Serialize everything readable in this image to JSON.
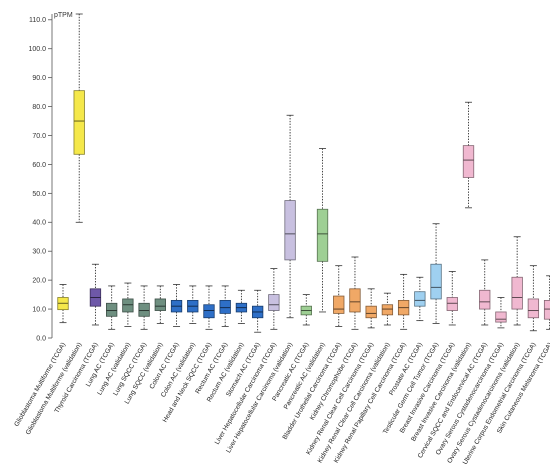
{
  "chart_data": {
    "type": "box",
    "ylabel": "pTPM",
    "ylim": [
      0,
      112
    ],
    "yticks": [
      0,
      10,
      20,
      30,
      40,
      50,
      60,
      70,
      80,
      90,
      100,
      110
    ],
    "ytick_labels": [
      "0.0",
      "10.0",
      "20.0",
      "30.0",
      "40.0",
      "50.0",
      "60.0",
      "70.0",
      "80.0",
      "90.0",
      "100.0",
      "110.0"
    ],
    "grid": false,
    "series": [
      {
        "category": "Glioblastoma Multiforme (TCGA)",
        "color": "#f5e84a",
        "min": 5.3,
        "q1": 9.8,
        "median": 12.0,
        "q3": 14.0,
        "max": 18.5
      },
      {
        "category": "Glioblastoma Multiforme (validation)",
        "color": "#f5e84a",
        "min": 40.0,
        "q1": 63.5,
        "median": 75.0,
        "q3": 85.5,
        "max": 112.0
      },
      {
        "category": "Thyroid Carcinoma (TCGA)",
        "color": "#6e58a8",
        "min": 4.5,
        "q1": 11.0,
        "median": 14.0,
        "q3": 17.0,
        "max": 25.5
      },
      {
        "category": "Lung AC (TCGA)",
        "color": "#6e8f80",
        "min": 3.0,
        "q1": 7.5,
        "median": 9.5,
        "q3": 12.0,
        "max": 18.0
      },
      {
        "category": "Lung AC (validation)",
        "color": "#6e8f80",
        "min": 4.0,
        "q1": 9.0,
        "median": 11.5,
        "q3": 13.5,
        "max": 19.0
      },
      {
        "category": "Lung SQCC (TCGA)",
        "color": "#6e8f80",
        "min": 3.0,
        "q1": 7.5,
        "median": 9.5,
        "q3": 12.0,
        "max": 18.0
      },
      {
        "category": "Lung SQCC (validation)",
        "color": "#6e8f80",
        "min": 5.0,
        "q1": 9.5,
        "median": 11.0,
        "q3": 13.5,
        "max": 18.0
      },
      {
        "category": "Colon AC (TCGA)",
        "color": "#2e6fc7",
        "min": 4.0,
        "q1": 9.0,
        "median": 11.0,
        "q3": 13.0,
        "max": 18.5
      },
      {
        "category": "Colon AC (validation)",
        "color": "#2e6fc7",
        "min": 5.0,
        "q1": 9.0,
        "median": 11.0,
        "q3": 13.0,
        "max": 18.0
      },
      {
        "category": "Head and Neck SQCC (TCGA)",
        "color": "#2e6fc7",
        "min": 3.0,
        "q1": 7.0,
        "median": 9.5,
        "q3": 11.5,
        "max": 18.0
      },
      {
        "category": "Rectum AC (TCGA)",
        "color": "#2e6fc7",
        "min": 4.0,
        "q1": 8.5,
        "median": 10.5,
        "q3": 13.0,
        "max": 18.0
      },
      {
        "category": "Rectum AC (validation)",
        "color": "#2e6fc7",
        "min": 5.0,
        "q1": 9.0,
        "median": 10.5,
        "q3": 12.0,
        "max": 16.5
      },
      {
        "category": "Stomach AC (TCGA)",
        "color": "#2e6fc7",
        "min": 2.0,
        "q1": 7.0,
        "median": 9.0,
        "q3": 11.0,
        "max": 16.5
      },
      {
        "category": "Liver Hepatocellular Carcinoma (TCGA)",
        "color": "#c8c0e0",
        "min": 3.0,
        "q1": 9.5,
        "median": 11.5,
        "q3": 15.0,
        "max": 24.0
      },
      {
        "category": "Liver Hepatocellular Carcinoma (validation)",
        "color": "#c8c0e0",
        "min": 7.0,
        "q1": 27.0,
        "median": 36.0,
        "q3": 47.5,
        "max": 77.0
      },
      {
        "category": "Pancreatic AC (TCGA)",
        "color": "#9ecf94",
        "min": 4.5,
        "q1": 8.0,
        "median": 9.5,
        "q3": 11.0,
        "max": 15.0
      },
      {
        "category": "Pancreatic AC (validation)",
        "color": "#9ecf94",
        "min": 9.0,
        "q1": 26.5,
        "median": 36.0,
        "q3": 44.5,
        "max": 65.5
      },
      {
        "category": "Bladder Urothelial Carcinoma (TCGA)",
        "color": "#f0a866",
        "min": 4.0,
        "q1": 8.5,
        "median": 10.0,
        "q3": 14.5,
        "max": 25.0
      },
      {
        "category": "Kidney Chromophobe (TCGA)",
        "color": "#f0a866",
        "min": 3.0,
        "q1": 9.0,
        "median": 12.5,
        "q3": 17.0,
        "max": 28.0
      },
      {
        "category": "Kidney Renal Clear Cell Carcinoma (TCGA)",
        "color": "#f0a866",
        "min": 3.5,
        "q1": 7.0,
        "median": 8.5,
        "q3": 11.0,
        "max": 17.0
      },
      {
        "category": "Kidney Renal Clear Cell Carcinoma (validation)",
        "color": "#f0a866",
        "min": 4.5,
        "q1": 8.0,
        "median": 10.0,
        "q3": 11.5,
        "max": 15.5
      },
      {
        "category": "Kidney Renal Papillary Cell Carcinoma (TCGA)",
        "color": "#f0a866",
        "min": 3.0,
        "q1": 8.0,
        "median": 10.5,
        "q3": 13.0,
        "max": 22.0
      },
      {
        "category": "Prostate AC (TCGA)",
        "color": "#9fd0f0",
        "min": 6.0,
        "q1": 11.0,
        "median": 13.0,
        "q3": 16.0,
        "max": 21.0
      },
      {
        "category": "Testicular Germ Cell Tumor (TCGA)",
        "color": "#9fd0f0",
        "min": 5.0,
        "q1": 13.5,
        "median": 17.5,
        "q3": 25.5,
        "max": 39.5
      },
      {
        "category": "Breast Invasive Carcinoma (TCGA)",
        "color": "#f0b8d0",
        "min": 4.5,
        "q1": 9.5,
        "median": 12.0,
        "q3": 14.0,
        "max": 23.0
      },
      {
        "category": "Breast Invasive Carcinoma (validation)",
        "color": "#f0b8d0",
        "min": 45.0,
        "q1": 55.5,
        "median": 61.5,
        "q3": 66.5,
        "max": 81.5
      },
      {
        "category": "Cervical SQCC and Endocervical AC (TCGA)",
        "color": "#f0b8d0",
        "min": 4.5,
        "q1": 10.0,
        "median": 12.5,
        "q3": 16.5,
        "max": 27.0
      },
      {
        "category": "Ovary Serous Cystadenocarcinoma (TCGA)",
        "color": "#f0b8d0",
        "min": 3.5,
        "q1": 5.5,
        "median": 6.5,
        "q3": 9.0,
        "max": 14.0
      },
      {
        "category": "Ovary Serous Cystadenocarcinoma (validation)",
        "color": "#f0b8d0",
        "min": 4.5,
        "q1": 10.0,
        "median": 14.0,
        "q3": 21.0,
        "max": 35.0
      },
      {
        "category": "Uterine Corpus Endometrial Carcinoma (TCGA)",
        "color": "#f0b8d0",
        "min": 2.5,
        "q1": 7.0,
        "median": 9.5,
        "q3": 13.5,
        "max": 25.0
      },
      {
        "category": "Skin Cutaneous Melanoma (TCGA)",
        "color": "#f0b8d0",
        "min": 3.0,
        "q1": 6.5,
        "median": 10.0,
        "q3": 13.0,
        "max": 21.5
      }
    ]
  }
}
